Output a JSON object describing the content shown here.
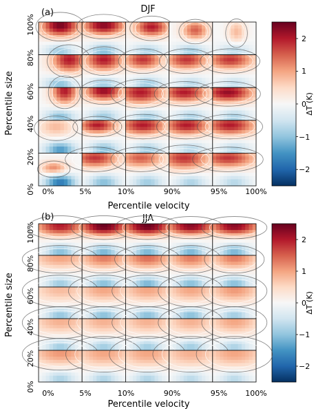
{
  "panels": [
    {
      "id": "a",
      "label": "(a)",
      "title": "DJF",
      "xlabel": "Percentile velocity",
      "ylabel": "Percentile size",
      "xticks": [
        "0%",
        "5%",
        "10%",
        "90%",
        "95%",
        "100%"
      ],
      "yticks": [
        "0%",
        "20%",
        "40%",
        "60%",
        "80%",
        "100%"
      ]
    },
    {
      "id": "b",
      "label": "(b)",
      "title": "JJA",
      "xlabel": "Percentile velocity",
      "ylabel": "Percentile size",
      "xticks": [
        "0%",
        "5%",
        "10%",
        "90%",
        "95%",
        "100%"
      ],
      "yticks": [
        "0%",
        "20%",
        "40%",
        "60%",
        "80%",
        "100%"
      ]
    }
  ],
  "colorbar": {
    "label": "ΔT (K)",
    "ticks": [
      "2",
      "1",
      "0",
      "−1",
      "−2"
    ],
    "tick_values": [
      2,
      1,
      0,
      -1,
      -2
    ],
    "range": [
      -2.5,
      2.5
    ],
    "colormap": "RdBu_r"
  },
  "chart_data": [
    {
      "type": "heatmap",
      "title": "DJF",
      "xlabel": "Percentile velocity",
      "ylabel": "Percentile size",
      "x_bins": [
        "0%-5%",
        "5%-10%",
        "10%-90%",
        "90%-95%",
        "95%-100%"
      ],
      "y_bins": [
        "80%-100%",
        "60%-80%",
        "40%-60%",
        "20%-40%",
        "0%-20%"
      ],
      "zlim": [
        -2.5,
        2.5
      ],
      "zlabel": "ΔT (K)",
      "subplots": [
        [
          {
            "warm": 2.4,
            "cold": -1.0,
            "wx": 0.45,
            "wy": 0.35,
            "cx": 0.5,
            "cy": 0.9
          },
          {
            "warm": 2.3,
            "cold": -1.2,
            "wx": 0.5,
            "wy": 0.3,
            "cx": 0.5,
            "cy": 0.9
          },
          {
            "warm": 2.0,
            "cold": -0.9,
            "wx": 0.4,
            "wy": 0.3,
            "cx": 0.6,
            "cy": 0.85
          },
          {
            "warm": 1.5,
            "cold": -1.0,
            "wx": 0.3,
            "wy": 0.3,
            "cx": 0.6,
            "cy": 0.75
          },
          {
            "warm": 0.8,
            "cold": -0.8,
            "wx": 0.2,
            "wy": 0.35,
            "cx": 0.55,
            "cy": 0.7
          }
        ],
        [
          {
            "warm": 2.0,
            "cold": -1.2,
            "wx": 0.4,
            "wy": 0.4,
            "cx": 0.7,
            "cy": 0.85
          },
          {
            "warm": 2.0,
            "cold": -1.0,
            "wx": 0.45,
            "wy": 0.35,
            "cx": 0.5,
            "cy": 0.85
          },
          {
            "warm": 1.8,
            "cold": -1.0,
            "wx": 0.45,
            "wy": 0.3,
            "cx": 0.4,
            "cy": 0.85
          },
          {
            "warm": 1.8,
            "cold": -0.8,
            "wx": 0.5,
            "wy": 0.3,
            "cx": 0.4,
            "cy": 0.85
          },
          {
            "warm": 1.8,
            "cold": -0.7,
            "wx": 0.55,
            "wy": 0.3,
            "cx": 0.4,
            "cy": 0.85
          }
        ],
        [
          {
            "warm": 2.0,
            "cold": -1.2,
            "wx": 0.3,
            "wy": 0.4,
            "cx": 0.6,
            "cy": 0.9
          },
          {
            "warm": 2.2,
            "cold": -1.0,
            "wx": 0.45,
            "wy": 0.3,
            "cx": 0.5,
            "cy": 0.9
          },
          {
            "warm": 2.0,
            "cold": -1.0,
            "wx": 0.55,
            "wy": 0.35,
            "cx": 0.35,
            "cy": 0.85
          },
          {
            "warm": 2.0,
            "cold": -0.9,
            "wx": 0.55,
            "wy": 0.3,
            "cx": 0.35,
            "cy": 0.85
          },
          {
            "warm": 2.2,
            "cold": -0.9,
            "wx": 0.6,
            "wy": 0.3,
            "cx": 0.35,
            "cy": 0.85
          }
        ],
        [
          {
            "warm": 0.8,
            "cold": -1.6,
            "wx": 0.4,
            "wy": 0.3,
            "cx": 0.4,
            "cy": 0.8
          },
          {
            "warm": 2.0,
            "cold": -1.2,
            "wx": 0.45,
            "wy": 0.25,
            "cx": 0.35,
            "cy": 0.85
          },
          {
            "warm": 2.0,
            "cold": -1.0,
            "wx": 0.55,
            "wy": 0.3,
            "cx": 0.4,
            "cy": 0.85
          },
          {
            "warm": 2.0,
            "cold": -0.8,
            "wx": 0.55,
            "wy": 0.3,
            "cx": 0.4,
            "cy": 0.85
          },
          {
            "warm": 2.0,
            "cold": -0.8,
            "wx": 0.6,
            "wy": 0.3,
            "cx": 0.4,
            "cy": 0.85
          }
        ],
        [
          {
            "warm": 1.2,
            "cold": -2.0,
            "wx": 0.3,
            "wy": 0.2,
            "cx": 0.35,
            "cy": 0.55
          },
          {
            "warm": 1.8,
            "cold": -1.2,
            "wx": 0.55,
            "wy": 0.3,
            "cx": 0.3,
            "cy": 0.85
          },
          {
            "warm": 1.5,
            "cold": -1.0,
            "wx": 0.55,
            "wy": 0.3,
            "cx": 0.35,
            "cy": 0.85
          },
          {
            "warm": 1.8,
            "cold": -0.9,
            "wx": 0.6,
            "wy": 0.35,
            "cx": 0.35,
            "cy": 0.85
          },
          {
            "warm": 1.8,
            "cold": -0.8,
            "wx": 0.65,
            "wy": 0.3,
            "cx": 0.35,
            "cy": 0.85
          }
        ]
      ]
    },
    {
      "type": "heatmap",
      "title": "JJA",
      "xlabel": "Percentile velocity",
      "ylabel": "Percentile size",
      "x_bins": [
        "0%-5%",
        "5%-10%",
        "10%-90%",
        "90%-95%",
        "95%-100%"
      ],
      "y_bins": [
        "80%-100%",
        "60%-80%",
        "40%-60%",
        "20%-40%",
        "0%-20%"
      ],
      "zlim": [
        -2.5,
        2.5
      ],
      "zlabel": "ΔT (K)",
      "subplots": [
        [
          {
            "warm": 2.0,
            "cold": -1.2,
            "wx": 0.6,
            "wy": 0.3,
            "cx": 0.5,
            "cy": 0.92
          },
          {
            "warm": 2.5,
            "cold": -1.3,
            "wx": 0.6,
            "wy": 0.3,
            "cx": 0.5,
            "cy": 0.92
          },
          {
            "warm": 2.5,
            "cold": -1.3,
            "wx": 0.6,
            "wy": 0.3,
            "cx": 0.5,
            "cy": 0.92
          },
          {
            "warm": 2.3,
            "cold": -1.3,
            "wx": 0.6,
            "wy": 0.28,
            "cx": 0.5,
            "cy": 0.92
          },
          {
            "warm": 2.3,
            "cold": -1.3,
            "wx": 0.6,
            "wy": 0.28,
            "cx": 0.5,
            "cy": 0.92
          }
        ],
        [
          {
            "warm": 1.0,
            "cold": -1.0,
            "wx": 0.7,
            "wy": 0.35,
            "cx": 0.5,
            "cy": 0.92
          },
          {
            "warm": 1.3,
            "cold": -1.2,
            "wx": 0.6,
            "wy": 0.35,
            "cx": 0.5,
            "cy": 0.92
          },
          {
            "warm": 1.4,
            "cold": -1.3,
            "wx": 0.6,
            "wy": 0.35,
            "cx": 0.5,
            "cy": 0.92
          },
          {
            "warm": 1.3,
            "cold": -1.2,
            "wx": 0.55,
            "wy": 0.35,
            "cx": 0.5,
            "cy": 0.92
          },
          {
            "warm": 1.3,
            "cold": -1.2,
            "wx": 0.55,
            "wy": 0.35,
            "cx": 0.5,
            "cy": 0.92
          }
        ],
        [
          {
            "warm": 0.8,
            "cold": -1.1,
            "wx": 0.7,
            "wy": 0.4,
            "cx": 0.5,
            "cy": 0.92
          },
          {
            "warm": 1.0,
            "cold": -1.2,
            "wx": 0.65,
            "wy": 0.4,
            "cx": 0.5,
            "cy": 0.92
          },
          {
            "warm": 1.0,
            "cold": -1.2,
            "wx": 0.65,
            "wy": 0.4,
            "cx": 0.5,
            "cy": 0.92
          },
          {
            "warm": 1.0,
            "cold": -1.2,
            "wx": 0.6,
            "wy": 0.4,
            "cx": 0.5,
            "cy": 0.92
          },
          {
            "warm": 1.1,
            "cold": -1.0,
            "wx": 0.6,
            "wy": 0.4,
            "cx": 0.5,
            "cy": 0.92
          }
        ],
        [
          {
            "warm": 0.9,
            "cold": -1.0,
            "wx": 0.7,
            "wy": 0.4,
            "cx": 0.5,
            "cy": 0.92
          },
          {
            "warm": 0.9,
            "cold": -1.0,
            "wx": 0.65,
            "wy": 0.4,
            "cx": 0.5,
            "cy": 0.92
          },
          {
            "warm": 0.9,
            "cold": -1.0,
            "wx": 0.65,
            "wy": 0.4,
            "cx": 0.5,
            "cy": 0.92
          },
          {
            "warm": 0.9,
            "cold": -1.0,
            "wx": 0.6,
            "wy": 0.4,
            "cx": 0.5,
            "cy": 0.92
          },
          {
            "warm": 1.0,
            "cold": -0.9,
            "wx": 0.6,
            "wy": 0.4,
            "cx": 0.5,
            "cy": 0.92
          }
        ],
        [
          {
            "warm": 1.1,
            "cold": -0.9,
            "wx": 0.7,
            "wy": 0.4,
            "cx": 0.5,
            "cy": 0.92
          },
          {
            "warm": 1.0,
            "cold": -0.9,
            "wx": 0.7,
            "wy": 0.45,
            "cx": 0.5,
            "cy": 0.92
          },
          {
            "warm": 1.0,
            "cold": -0.9,
            "wx": 0.7,
            "wy": 0.45,
            "cx": 0.5,
            "cy": 0.92
          },
          {
            "warm": 0.9,
            "cold": -0.8,
            "wx": 0.7,
            "wy": 0.45,
            "cx": 0.5,
            "cy": 0.92
          },
          {
            "warm": 1.0,
            "cold": -0.8,
            "wx": 0.7,
            "wy": 0.45,
            "cx": 0.5,
            "cy": 0.92
          }
        ]
      ]
    }
  ]
}
